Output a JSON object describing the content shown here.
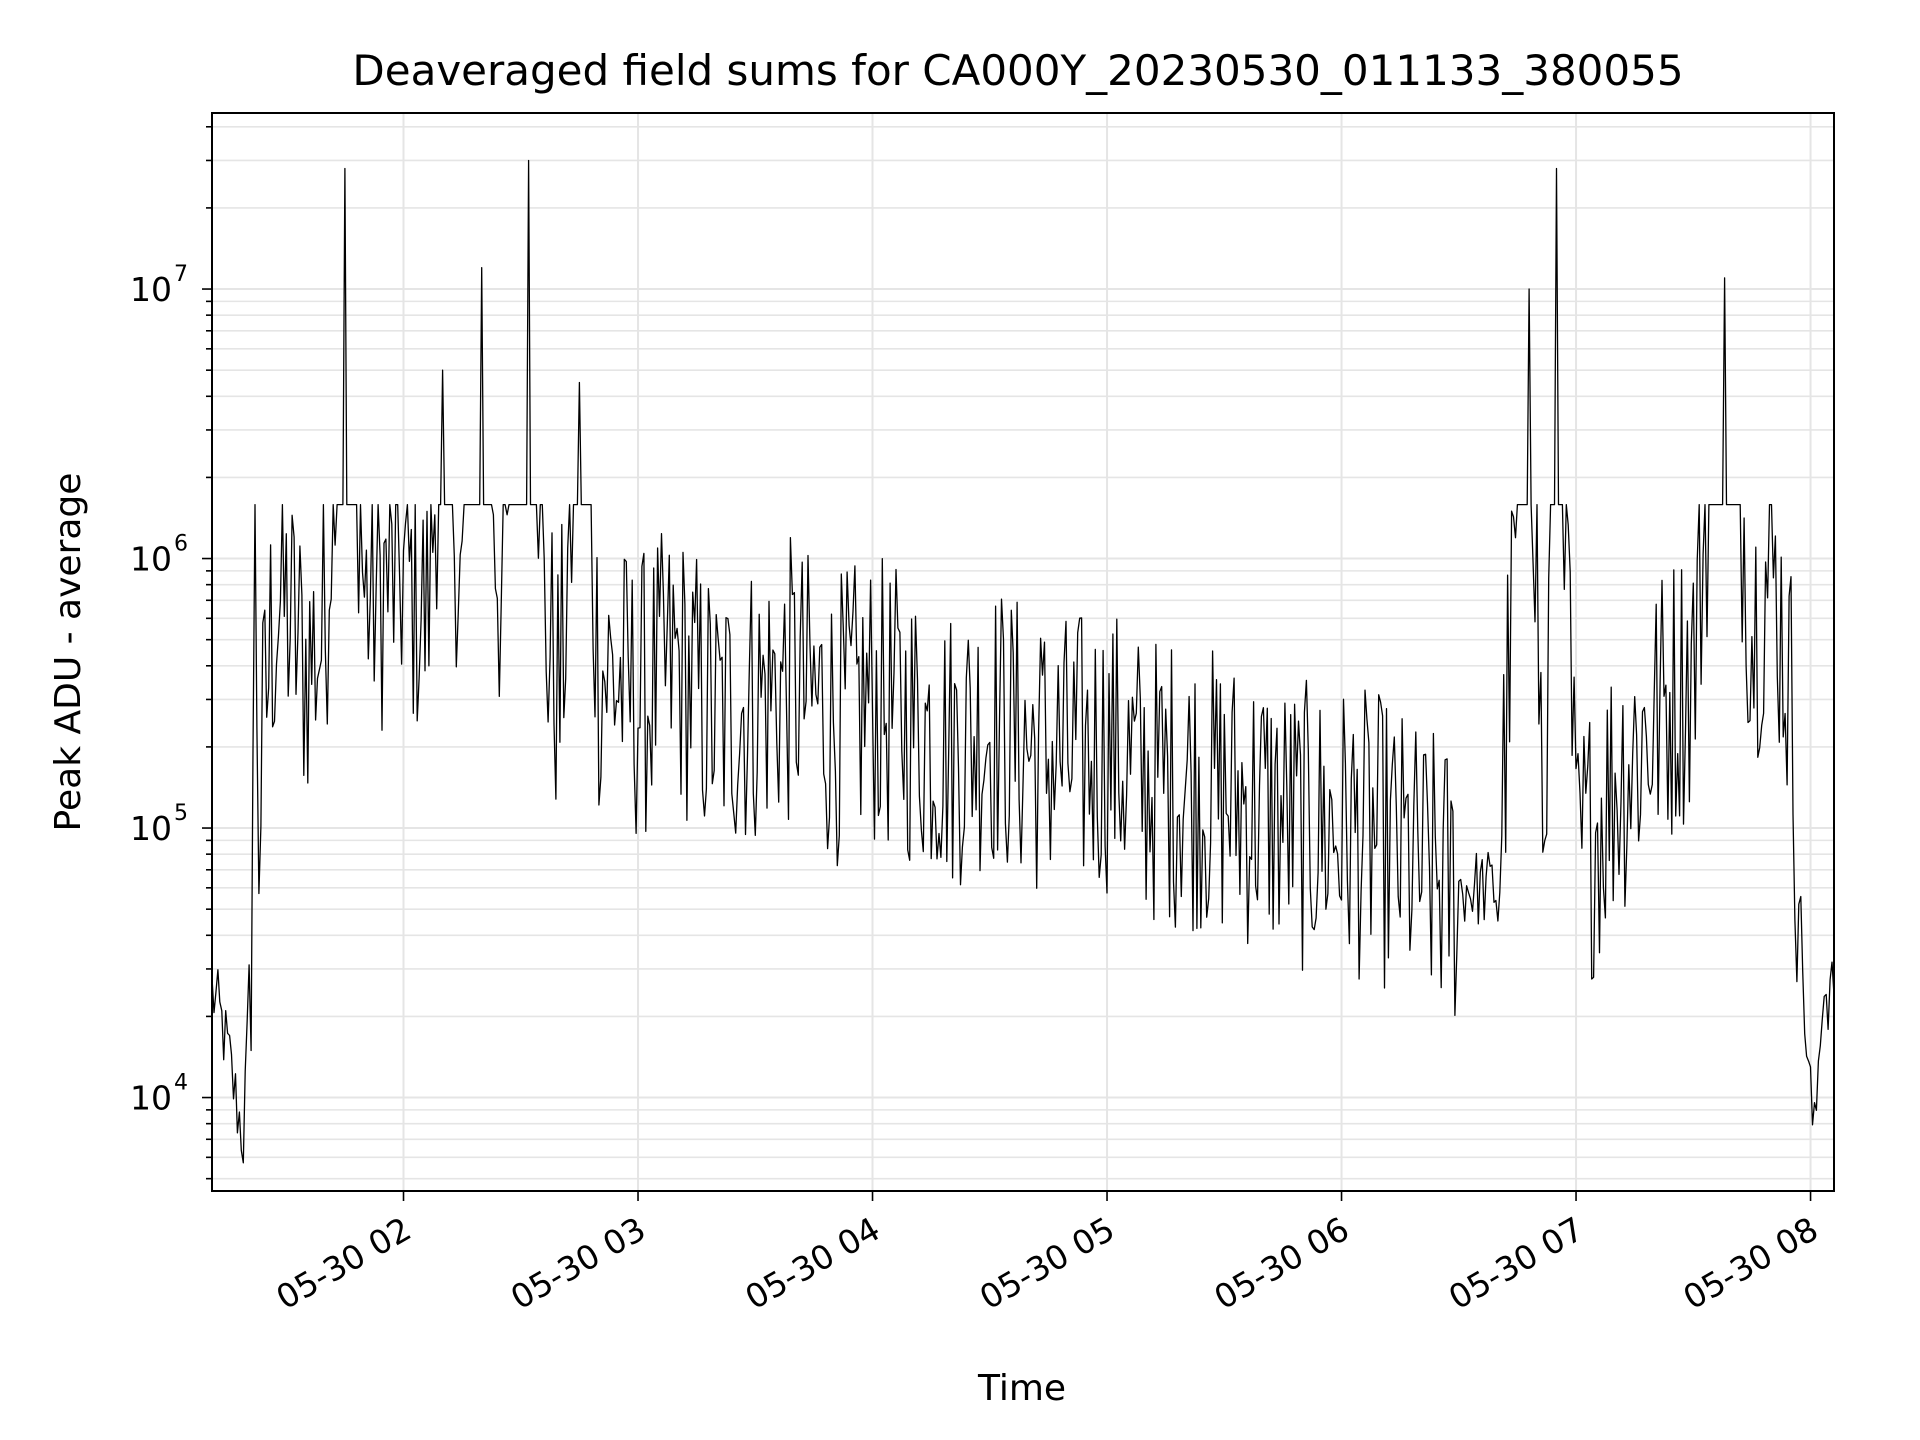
{
  "chart_data": {
    "type": "line",
    "title": "Deaveraged field sums for CA000Y_20230530_011133_380055",
    "xlabel": "Time",
    "ylabel": "Peak ADU - average",
    "yscale": "log",
    "xlim": [
      "2023-05-30 01:11",
      "2023-05-30 08:06"
    ],
    "ylim": [
      4500,
      45000000
    ],
    "x_ticks": [
      "05-30 02",
      "05-30 03",
      "05-30 04",
      "05-30 05",
      "05-30 06",
      "05-30 07",
      "05-30 08"
    ],
    "y_ticks": [
      {
        "base": "10",
        "exp": "4",
        "value": 10000
      },
      {
        "base": "10",
        "exp": "5",
        "value": 100000
      },
      {
        "base": "10",
        "exp": "6",
        "value": 1000000
      },
      {
        "base": "10",
        "exp": "7",
        "value": 10000000
      }
    ],
    "grid": true,
    "line_color": "#000000",
    "grid_color": "#e5e5e5",
    "series": [
      {
        "x": [
          "2023-05-30 01:11",
          "2023-05-30 01:13",
          "2023-05-30 01:15",
          "2023-05-30 01:17",
          "2023-05-30 01:19",
          "2023-05-30 01:20",
          "2023-05-30 01:21",
          "2023-05-30 01:22",
          "2023-05-30 01:23",
          "2023-05-30 01:24",
          "2023-05-30 01:26",
          "2023-05-30 01:28",
          "2023-05-30 01:30",
          "2023-05-30 01:35",
          "2023-05-30 01:40",
          "2023-05-30 01:45",
          "2023-05-30 01:50",
          "2023-05-30 01:55",
          "2023-05-30 02:00",
          "2023-05-30 02:06",
          "2023-05-30 02:10",
          "2023-05-30 02:15",
          "2023-05-30 02:20",
          "2023-05-30 02:25",
          "2023-05-30 02:32",
          "2023-05-30 02:36",
          "2023-05-30 02:40",
          "2023-05-30 02:45",
          "2023-05-30 02:50",
          "2023-05-30 03:00",
          "2023-05-30 03:10",
          "2023-05-30 03:20",
          "2023-05-30 03:30",
          "2023-05-30 03:40",
          "2023-05-30 03:50",
          "2023-05-30 04:00",
          "2023-05-30 04:10",
          "2023-05-30 04:20",
          "2023-05-30 04:30",
          "2023-05-30 04:40",
          "2023-05-30 04:50",
          "2023-05-30 05:00",
          "2023-05-30 05:10",
          "2023-05-30 05:20",
          "2023-05-30 05:30",
          "2023-05-30 05:40",
          "2023-05-30 05:50",
          "2023-05-30 06:00",
          "2023-05-30 06:10",
          "2023-05-30 06:20",
          "2023-05-30 06:30",
          "2023-05-30 06:40",
          "2023-05-30 06:48",
          "2023-05-30 06:52",
          "2023-05-30 06:55",
          "2023-05-30 07:00",
          "2023-05-30 07:10",
          "2023-05-30 07:20",
          "2023-05-30 07:30",
          "2023-05-30 07:38",
          "2023-05-30 07:45",
          "2023-05-30 07:50",
          "2023-05-30 07:53",
          "2023-05-30 07:55",
          "2023-05-30 07:57",
          "2023-05-30 07:59",
          "2023-05-30 08:01",
          "2023-05-30 08:03",
          "2023-05-30 08:06"
        ],
        "y": [
          25000,
          20000,
          15000,
          10000,
          7000,
          15000,
          40000,
          1100000,
          100000,
          200000,
          500000,
          700000,
          650000,
          400000,
          550000,
          28000000,
          700000,
          800000,
          900000,
          600000,
          5000000,
          800000,
          12000000,
          600000,
          30000000,
          600000,
          300000,
          4500000,
          400000,
          300000,
          400000,
          250000,
          300000,
          350000,
          250000,
          300000,
          250000,
          200000,
          250000,
          200000,
          180000,
          200000,
          150000,
          150000,
          130000,
          120000,
          100000,
          100000,
          90000,
          70000,
          60000,
          60000,
          10000000,
          60000,
          28000000,
          70000,
          150000,
          250000,
          400000,
          11000000,
          550000,
          950000,
          500000,
          300000,
          60000,
          15000,
          7000,
          25000,
          24000
        ]
      }
    ]
  }
}
